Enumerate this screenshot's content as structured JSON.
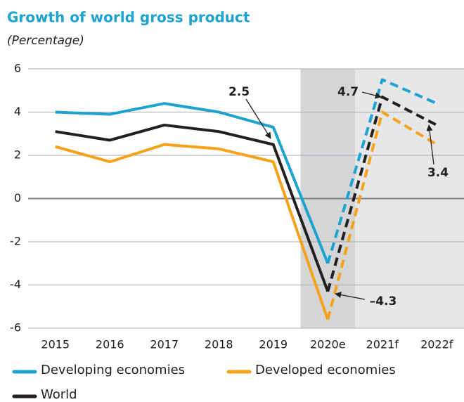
{
  "chart_data": {
    "type": "line",
    "title": "Growth of world gross product",
    "subtitle": "(Percentage)",
    "categories": [
      "2015",
      "2016",
      "2017",
      "2018",
      "2019",
      "2020e",
      "2021f",
      "2022f"
    ],
    "dashed_from": "2020e",
    "series": [
      {
        "name": "Developing economies",
        "color": "#1ea2cf",
        "values": [
          4.0,
          3.9,
          4.4,
          4.0,
          3.3,
          -3.0,
          5.5,
          4.4
        ]
      },
      {
        "name": "Developed economies",
        "color": "#f7a21b",
        "values": [
          2.4,
          1.7,
          2.5,
          2.3,
          1.7,
          -5.6,
          4.0,
          2.5
        ]
      },
      {
        "name": "World",
        "color": "#231f20",
        "values": [
          3.1,
          2.7,
          3.4,
          3.1,
          2.5,
          -4.3,
          4.7,
          3.4
        ],
        "value_labels": [
          null,
          null,
          null,
          null,
          "2.5",
          "–4.3",
          "4.7",
          "3.4"
        ]
      }
    ],
    "ylim": [
      -6,
      6
    ],
    "yticks": [
      -6,
      -4,
      -2,
      0,
      2,
      4,
      6
    ],
    "grid": true
  }
}
